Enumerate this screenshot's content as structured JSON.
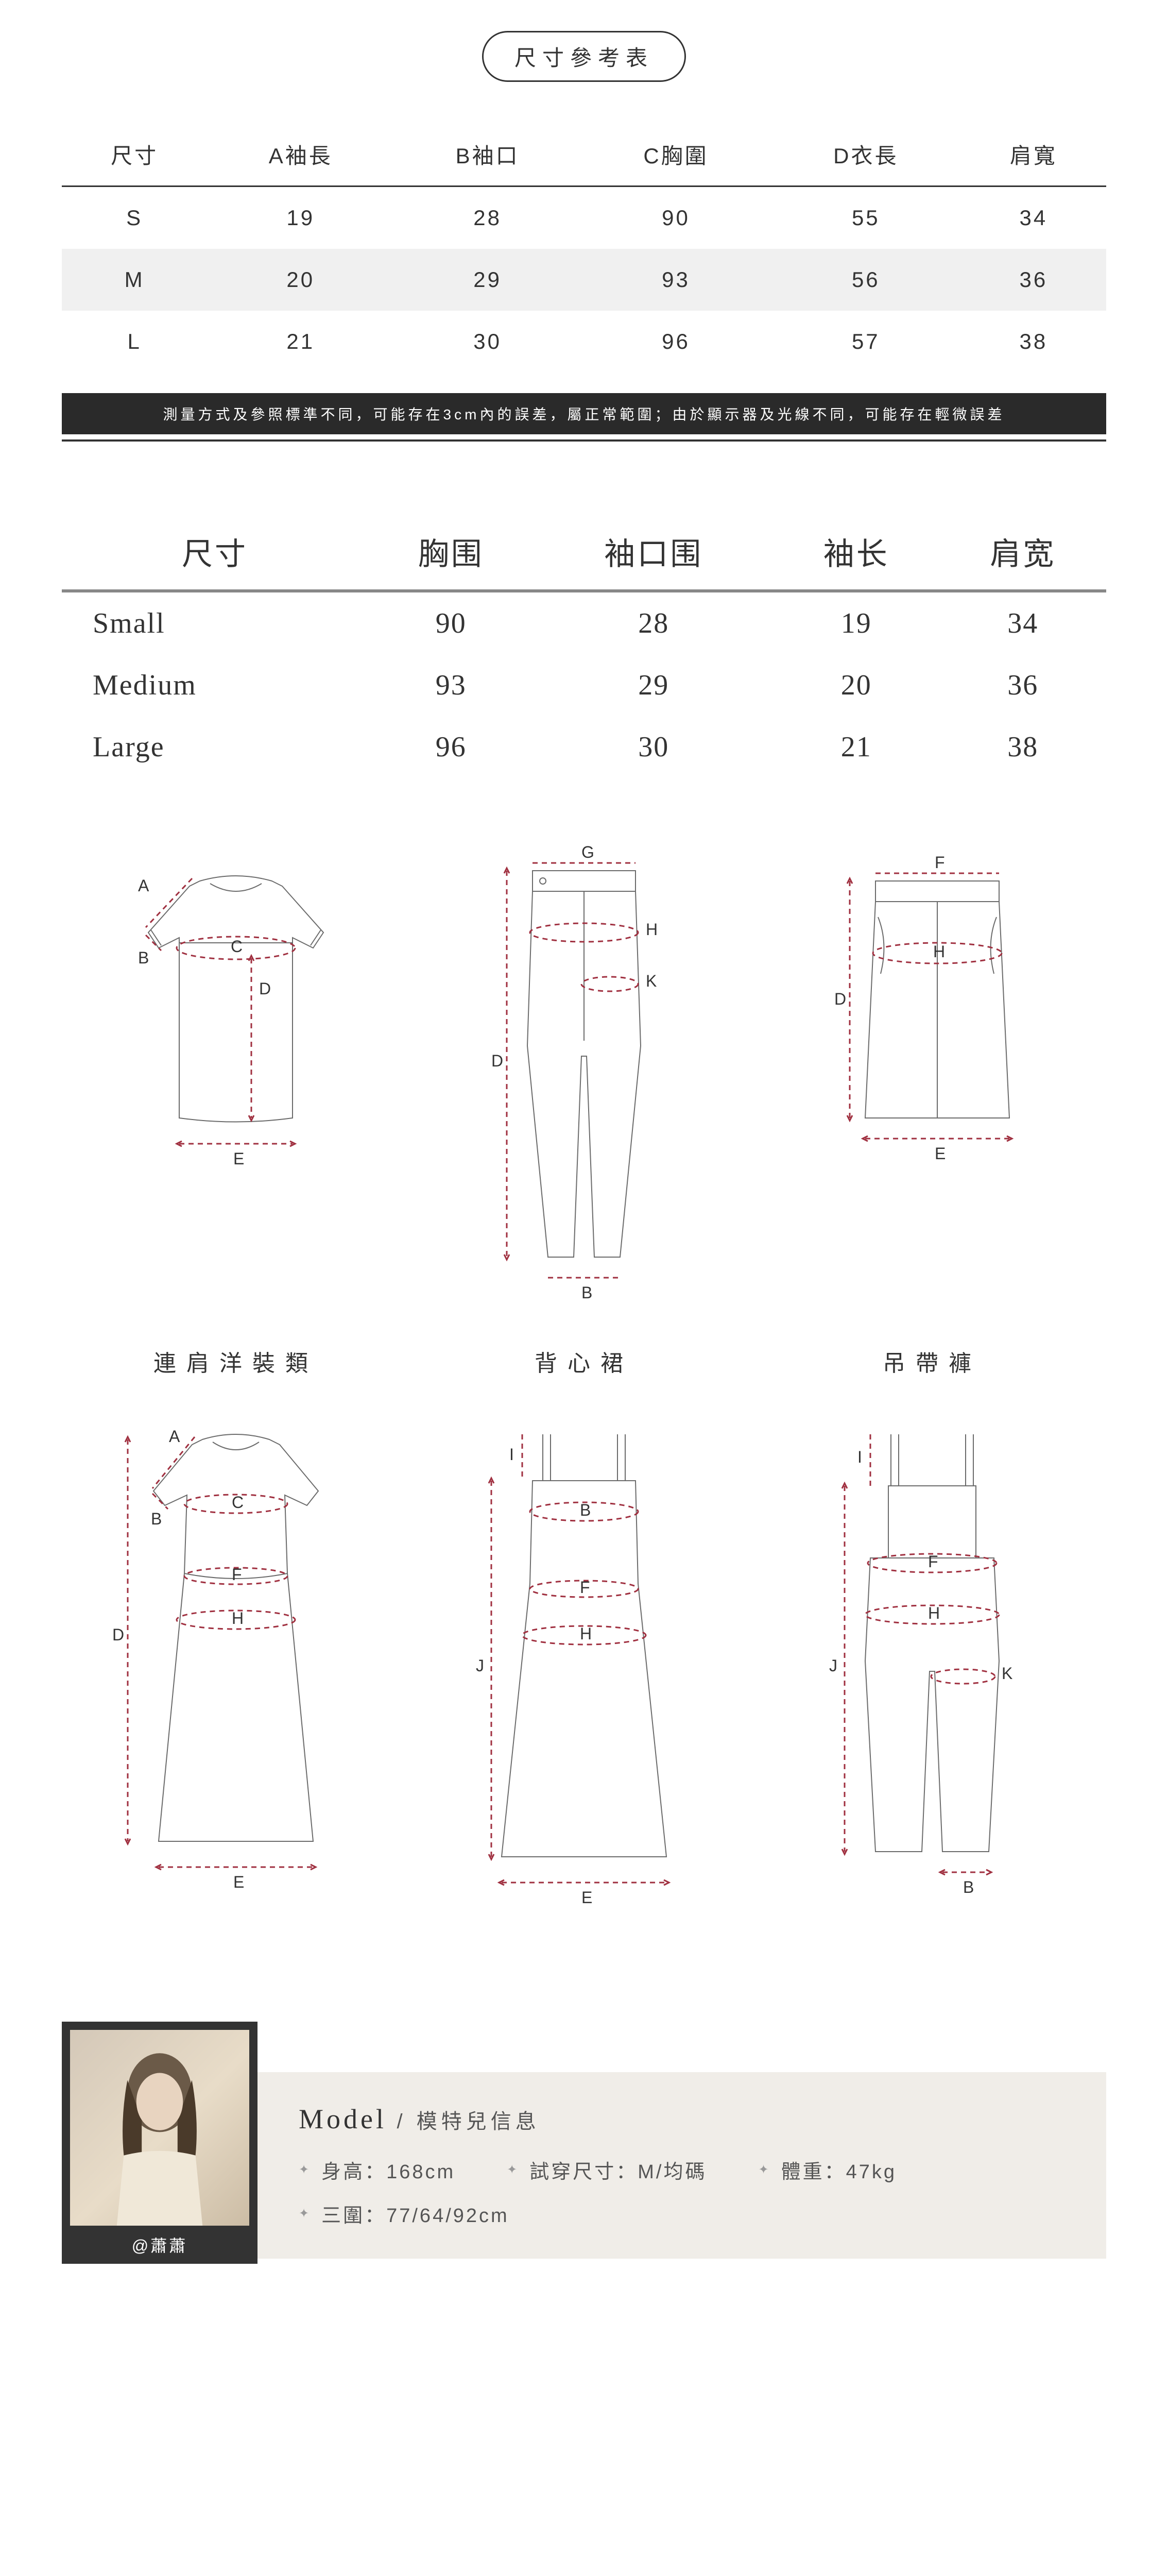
{
  "title": "尺寸參考表",
  "table1": {
    "headers": [
      "尺寸",
      "A袖長",
      "B袖口",
      "C胸圍",
      "D衣長",
      "肩寬"
    ],
    "rows": [
      [
        "S",
        "19",
        "28",
        "90",
        "55",
        "34"
      ],
      [
        "M",
        "20",
        "29",
        "93",
        "56",
        "36"
      ],
      [
        "L",
        "21",
        "30",
        "96",
        "57",
        "38"
      ]
    ]
  },
  "notice": "測量方式及參照標準不同，可能存在3cm內的誤差，屬正常範圍；由於顯示器及光線不同，可能存在輕微誤差",
  "table2": {
    "headers": [
      "尺寸",
      "胸围",
      "袖口围",
      "袖长",
      "肩宽"
    ],
    "rows": [
      [
        "Small",
        "90",
        "28",
        "19",
        "34"
      ],
      [
        "Medium",
        "93",
        "29",
        "20",
        "36"
      ],
      [
        "Large",
        "96",
        "30",
        "21",
        "38"
      ]
    ]
  },
  "diagram_titles": {
    "dress": "連肩洋裝類",
    "slip": "背心裙",
    "overall": "吊帶褲"
  },
  "labels": {
    "A": "A",
    "B": "B",
    "C": "C",
    "D": "D",
    "E": "E",
    "F": "F",
    "G": "G",
    "H": "H",
    "I": "I",
    "J": "J",
    "K": "K"
  },
  "colors": {
    "dash": "#a03040",
    "line": "#6b6b6b"
  },
  "model": {
    "title_en": "Model",
    "title_zh": "模特兒信息",
    "handle": "@蕭蕭",
    "stats": {
      "height_label": "身高：168cm",
      "tryon_label": "試穿尺寸：M/均碼",
      "weight_label": "體重：47kg",
      "measure_label": "三圍：77/64/92cm"
    }
  }
}
